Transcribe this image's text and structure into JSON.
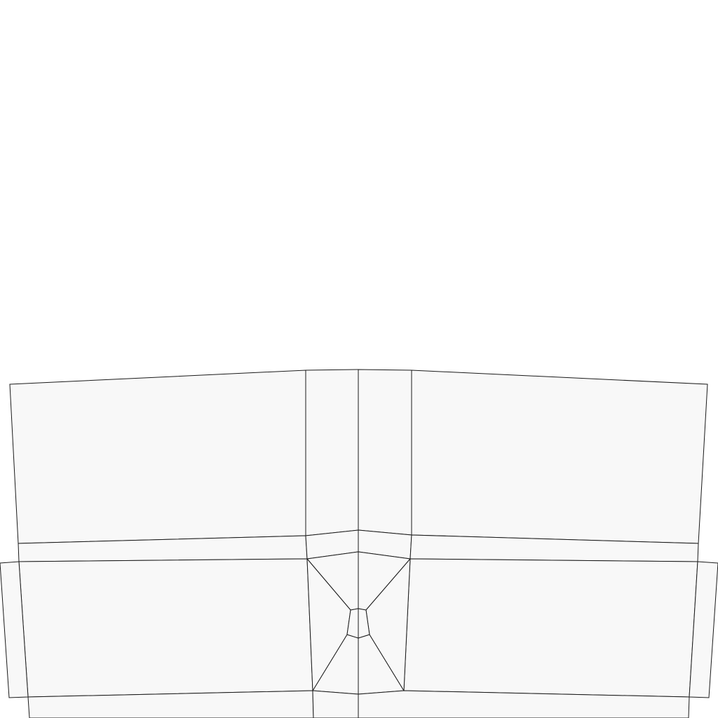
{
  "diagram": {
    "kind": "wireframe-mesh",
    "labels": [],
    "colors": {
      "background": "#ffffff",
      "face_fill": "#f8f8f8",
      "edge_stroke": "#1a1a1a"
    },
    "face_count": 22
  }
}
